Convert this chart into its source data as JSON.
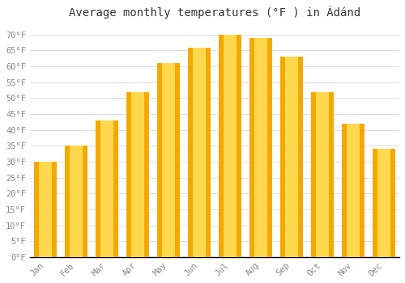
{
  "title": "Average monthly temperatures (°F ) in Ádánd",
  "months": [
    "Jan",
    "Feb",
    "Mar",
    "Apr",
    "May",
    "Jun",
    "Jul",
    "Aug",
    "Sep",
    "Oct",
    "Nov",
    "Dec"
  ],
  "values": [
    30,
    35,
    43,
    52,
    61,
    66,
    70,
    69,
    63,
    52,
    42,
    34
  ],
  "bar_color_center": "#FFD84D",
  "bar_color_edge": "#F5A800",
  "background_color": "#FFFFFF",
  "grid_color": "#DDDDDD",
  "yticks": [
    0,
    5,
    10,
    15,
    20,
    25,
    30,
    35,
    40,
    45,
    50,
    55,
    60,
    65,
    70
  ],
  "ytick_labels": [
    "0°F",
    "5°F",
    "10°F",
    "15°F",
    "20°F",
    "25°F",
    "30°F",
    "35°F",
    "40°F",
    "45°F",
    "50°F",
    "55°F",
    "60°F",
    "65°F",
    "70°F"
  ],
  "ylim": [
    0,
    73
  ],
  "title_fontsize": 10,
  "tick_fontsize": 7.5,
  "font_family": "monospace"
}
